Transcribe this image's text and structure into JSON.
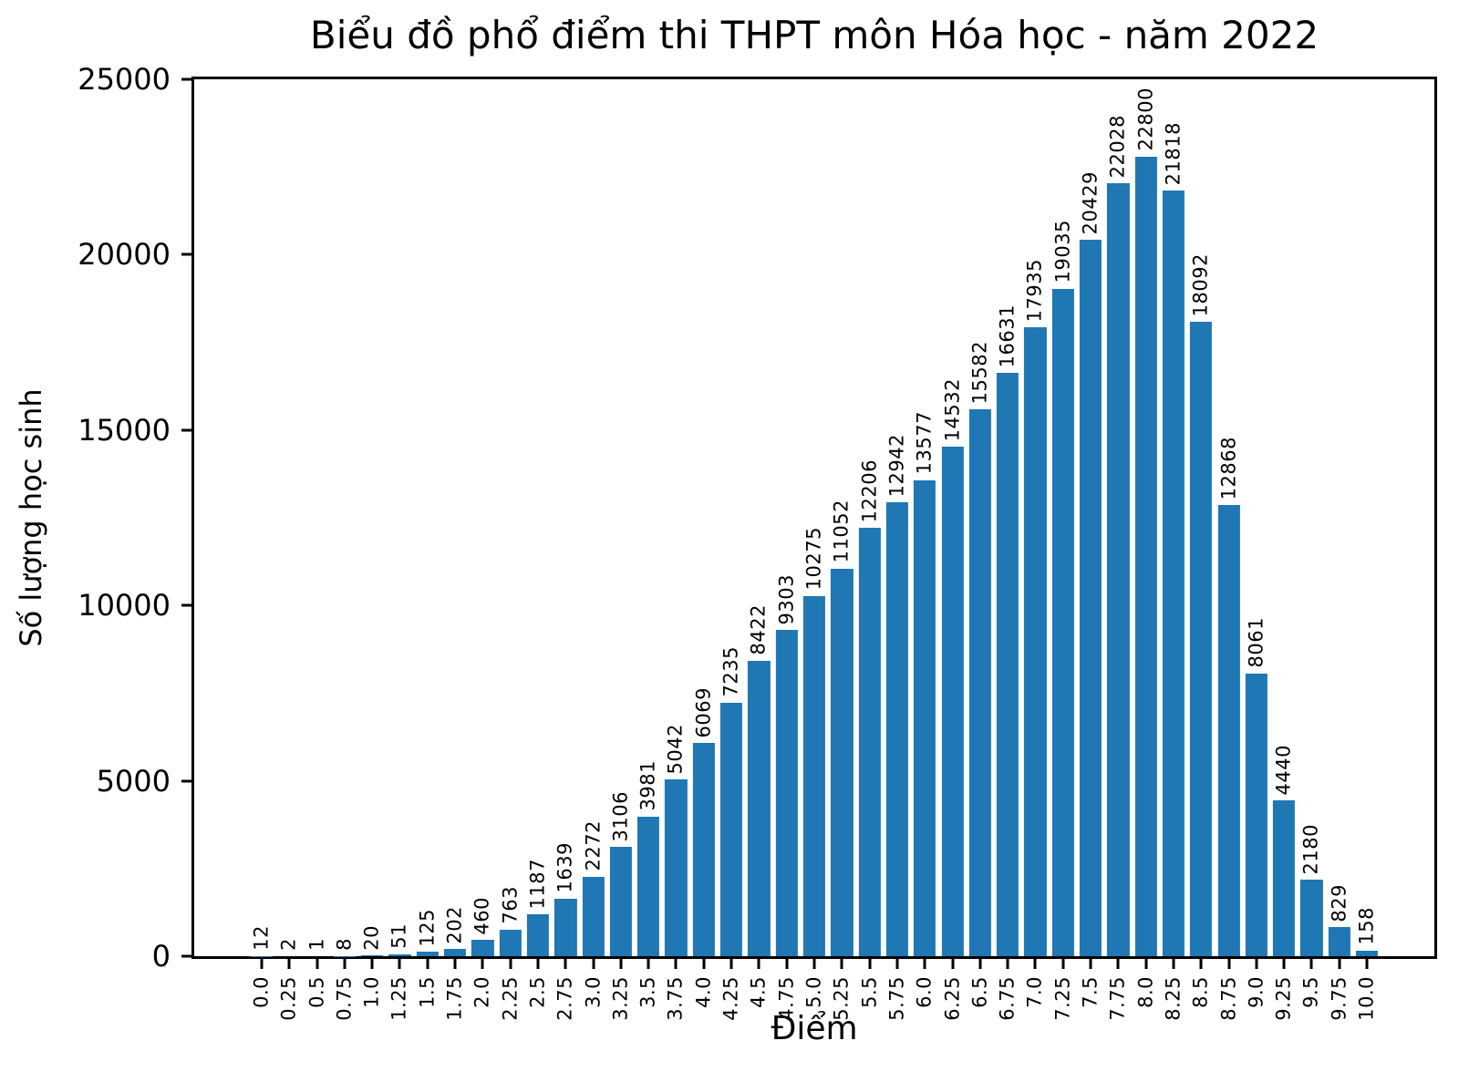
{
  "chart_data": {
    "type": "bar",
    "title": "Biểu đồ phổ điểm thi THPT môn Hóa học - năm 2022",
    "xlabel": "Điểm",
    "ylabel": "Số lượng học sinh",
    "bar_color": "#1f77b4",
    "axis_color": "#000000",
    "categories": [
      "0.0",
      "0.25",
      "0.5",
      "0.75",
      "1.0",
      "1.25",
      "1.5",
      "1.75",
      "2.0",
      "2.25",
      "2.5",
      "2.75",
      "3.0",
      "3.25",
      "3.5",
      "3.75",
      "4.0",
      "4.25",
      "4.5",
      "4.75",
      "5.0",
      "5.25",
      "5.5",
      "5.75",
      "6.0",
      "6.25",
      "6.5",
      "6.75",
      "7.0",
      "7.25",
      "7.5",
      "7.75",
      "8.0",
      "8.25",
      "8.5",
      "8.75",
      "9.0",
      "9.25",
      "9.5",
      "9.75",
      "10.0"
    ],
    "values": [
      12,
      2,
      1,
      8,
      20,
      51,
      125,
      202,
      460,
      763,
      1187,
      1639,
      2272,
      3106,
      3981,
      5042,
      6069,
      7235,
      8422,
      9303,
      10275,
      11052,
      12206,
      12942,
      13577,
      14532,
      15582,
      16631,
      17935,
      19035,
      20429,
      22028,
      22800,
      21818,
      18092,
      12868,
      8061,
      4440,
      2180,
      829,
      158
    ],
    "value_labels_rotated": true,
    "xtick_labels_rotated": true,
    "ylim": [
      0,
      25000
    ],
    "yticks": [
      0,
      5000,
      10000,
      15000,
      20000,
      25000
    ],
    "grid": "off",
    "legend": "none"
  }
}
